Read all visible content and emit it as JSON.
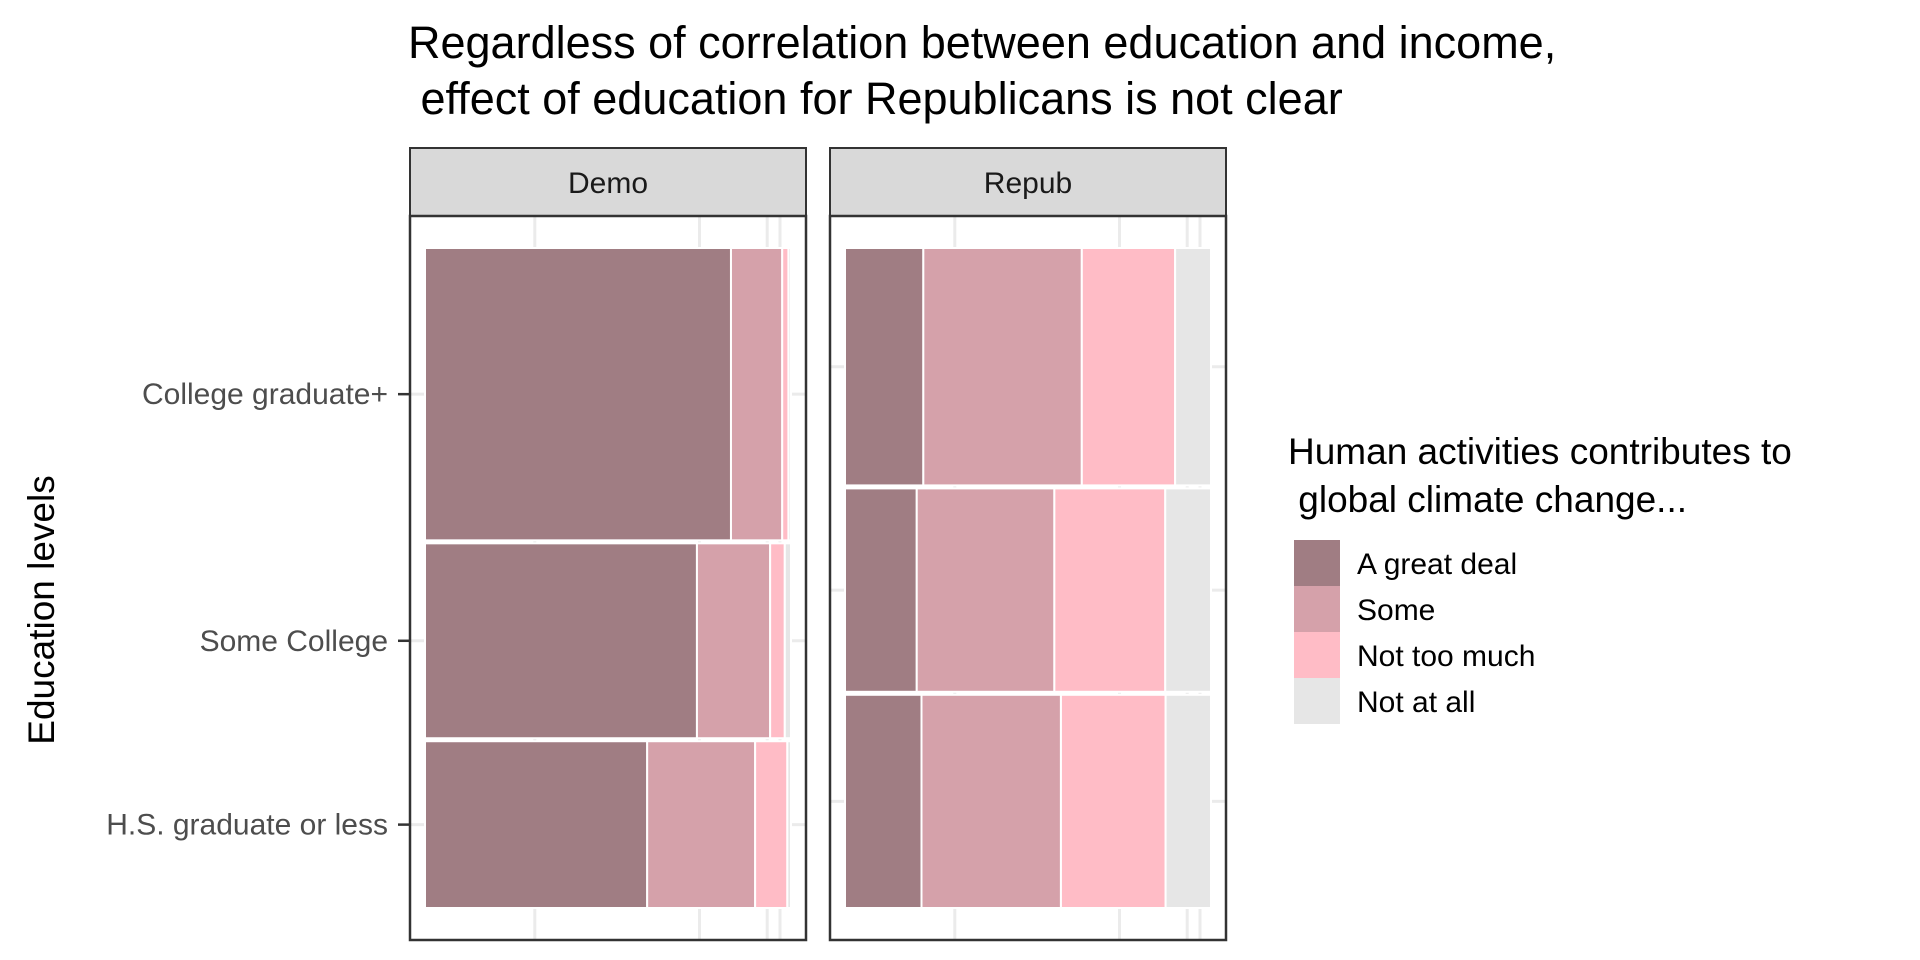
{
  "chart_data": {
    "type": "mosaic",
    "title_lines": [
      "Regardless of correlation between education and income,",
      " effect of education for Republicans is not clear"
    ],
    "ylabel": "Education levels",
    "xlabel": "",
    "categories": [
      "H.S. graduate or less",
      "Some College",
      "College graduate+"
    ],
    "legend": {
      "title_lines": [
        "Human activities contributes to",
        " global climate change..."
      ],
      "position": "right",
      "entries": [
        {
          "label": "A great deal",
          "color": "#a07d83"
        },
        {
          "label": "Some",
          "color": "#d5a1aa"
        },
        {
          "label": "Not too much",
          "color": "#ffbcc6"
        },
        {
          "label": "Not at all",
          "color": "#e6e6e6"
        }
      ]
    },
    "panels": [
      {
        "name": "Demo",
        "rows": [
          {
            "category": "H.S. graduate or less",
            "share": 0.255,
            "proportions": [
              0.607,
              0.295,
              0.088,
              0.01
            ]
          },
          {
            "category": "Some College",
            "share": 0.298,
            "proportions": [
              0.743,
              0.2,
              0.04,
              0.017
            ]
          },
          {
            "category": "College graduate+",
            "share": 0.447,
            "proportions": [
              0.836,
              0.14,
              0.017,
              0.007
            ]
          }
        ]
      },
      {
        "name": "Repub",
        "rows": [
          {
            "category": "H.S. graduate or less",
            "share": 0.326,
            "proportions": [
              0.209,
              0.381,
              0.286,
              0.124
            ]
          },
          {
            "category": "Some College",
            "share": 0.311,
            "proportions": [
              0.196,
              0.376,
              0.303,
              0.125
            ]
          },
          {
            "category": "College graduate+",
            "share": 0.363,
            "proportions": [
              0.214,
              0.433,
              0.255,
              0.098
            ]
          }
        ]
      }
    ],
    "grid": true
  }
}
